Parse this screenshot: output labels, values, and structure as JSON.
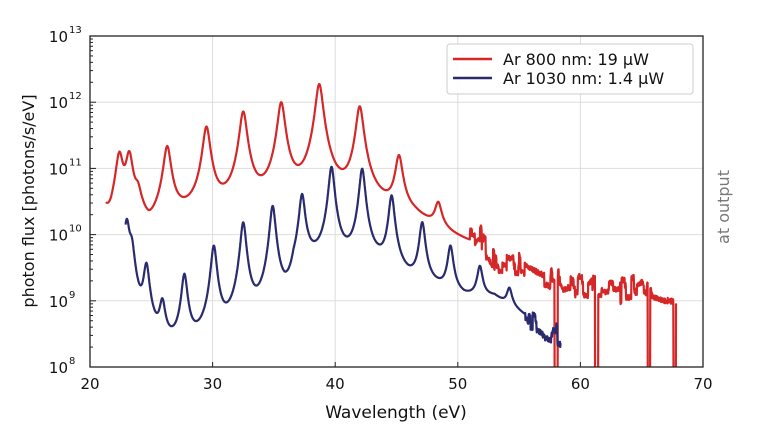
{
  "chart_data": {
    "type": "line",
    "xlabel": "Wavelength (eV)",
    "ylabel": "photon flux [photons/s/eV]",
    "right_label": "at output",
    "xlim": [
      20,
      70
    ],
    "ylim": [
      100000000.0,
      10000000000000.0
    ],
    "yscale": "log",
    "grid": true,
    "legend_position": "top-right",
    "x_ticks": [
      "20",
      "30",
      "40",
      "50",
      "60",
      "70"
    ],
    "x_tick_values": [
      20,
      30,
      40,
      50,
      60,
      70
    ],
    "y_ticks": [
      {
        "base": "10",
        "exp": "8"
      },
      {
        "base": "10",
        "exp": "9"
      },
      {
        "base": "10",
        "exp": "10"
      },
      {
        "base": "10",
        "exp": "11"
      },
      {
        "base": "10",
        "exp": "12"
      },
      {
        "base": "10",
        "exp": "13"
      }
    ],
    "y_tick_exponents": [
      8,
      9,
      10,
      11,
      12,
      13
    ],
    "series": [
      {
        "name": "Ar 800 nm: 19 µW",
        "color": "#d62728",
        "x_range": [
          21.3,
          67.8
        ],
        "peak_width_ev": 0.28,
        "noise_from_ev": 51.0,
        "peaks_ev_log10flux": [
          [
            22.4,
            11.2
          ],
          [
            23.2,
            11.2
          ],
          [
            23.9,
            10.5
          ],
          [
            26.3,
            11.32
          ],
          [
            29.5,
            11.62
          ],
          [
            32.5,
            11.85
          ],
          [
            35.6,
            11.99
          ],
          [
            38.7,
            12.27
          ],
          [
            42.0,
            11.93
          ],
          [
            45.2,
            11.17
          ],
          [
            48.4,
            10.42
          ],
          [
            51.7,
            9.84
          ]
        ],
        "baseline_ev_log10flux": [
          [
            21.3,
            10.22
          ],
          [
            21.7,
            9.85
          ],
          [
            22.0,
            9.9
          ],
          [
            24.3,
            9.8
          ],
          [
            24.8,
            9.5
          ],
          [
            25.3,
            9.8
          ],
          [
            26.0,
            10.1
          ],
          [
            28.0,
            10.15
          ],
          [
            31.0,
            10.2
          ],
          [
            34.0,
            10.25
          ],
          [
            37.0,
            10.33
          ],
          [
            40.5,
            10.35
          ],
          [
            43.5,
            10.28
          ],
          [
            46.5,
            10.15
          ],
          [
            49.5,
            9.84
          ],
          [
            51.0,
            9.72
          ],
          [
            52.5,
            9.5
          ],
          [
            53.0,
            9.3
          ],
          [
            55.0,
            9.35
          ],
          [
            56.5,
            9.1
          ],
          [
            58.0,
            8.95
          ],
          [
            60.0,
            8.9
          ],
          [
            62.0,
            8.85
          ],
          [
            64.0,
            8.9
          ],
          [
            65.0,
            9.1
          ],
          [
            66.0,
            8.75
          ],
          [
            67.8,
            8.6
          ]
        ],
        "dropouts_ev": [
          [
            57.9,
            58.15
          ],
          [
            61.2,
            61.45
          ],
          [
            65.5,
            65.7
          ],
          [
            67.6,
            67.8
          ]
        ]
      },
      {
        "name": "Ar 1030 nm: 1.4 µW",
        "color": "#2a2a6e",
        "x_range": [
          22.9,
          58.4
        ],
        "peak_width_ev": 0.22,
        "noise_from_ev": 55.5,
        "peaks_ev_log10flux": [
          [
            23.0,
            10.2
          ],
          [
            23.4,
            9.74
          ],
          [
            24.6,
            9.5
          ],
          [
            25.9,
            8.86
          ],
          [
            27.7,
            9.36
          ],
          [
            30.1,
            9.81
          ],
          [
            32.5,
            10.17
          ],
          [
            34.9,
            10.42
          ],
          [
            37.3,
            10.6
          ],
          [
            39.7,
            11.02
          ],
          [
            42.2,
            10.99
          ],
          [
            44.6,
            10.58
          ],
          [
            47.1,
            10.17
          ],
          [
            49.4,
            9.81
          ],
          [
            51.8,
            9.5
          ],
          [
            54.2,
            9.16
          ]
        ],
        "baseline_ev_log10flux": [
          [
            22.9,
            6.0
          ],
          [
            35.8,
            6.0
          ],
          [
            36.0,
            7.9
          ],
          [
            36.6,
            9.2
          ],
          [
            37.8,
            9.54
          ],
          [
            41.0,
            9.5
          ],
          [
            43.5,
            9.45
          ],
          [
            46.0,
            9.2
          ],
          [
            48.5,
            9.1
          ],
          [
            50.5,
            8.98
          ],
          [
            53.0,
            9.02
          ],
          [
            55.5,
            8.7
          ],
          [
            56.5,
            8.5
          ],
          [
            58.4,
            8.38
          ]
        ],
        "dropouts_ev": []
      }
    ]
  }
}
